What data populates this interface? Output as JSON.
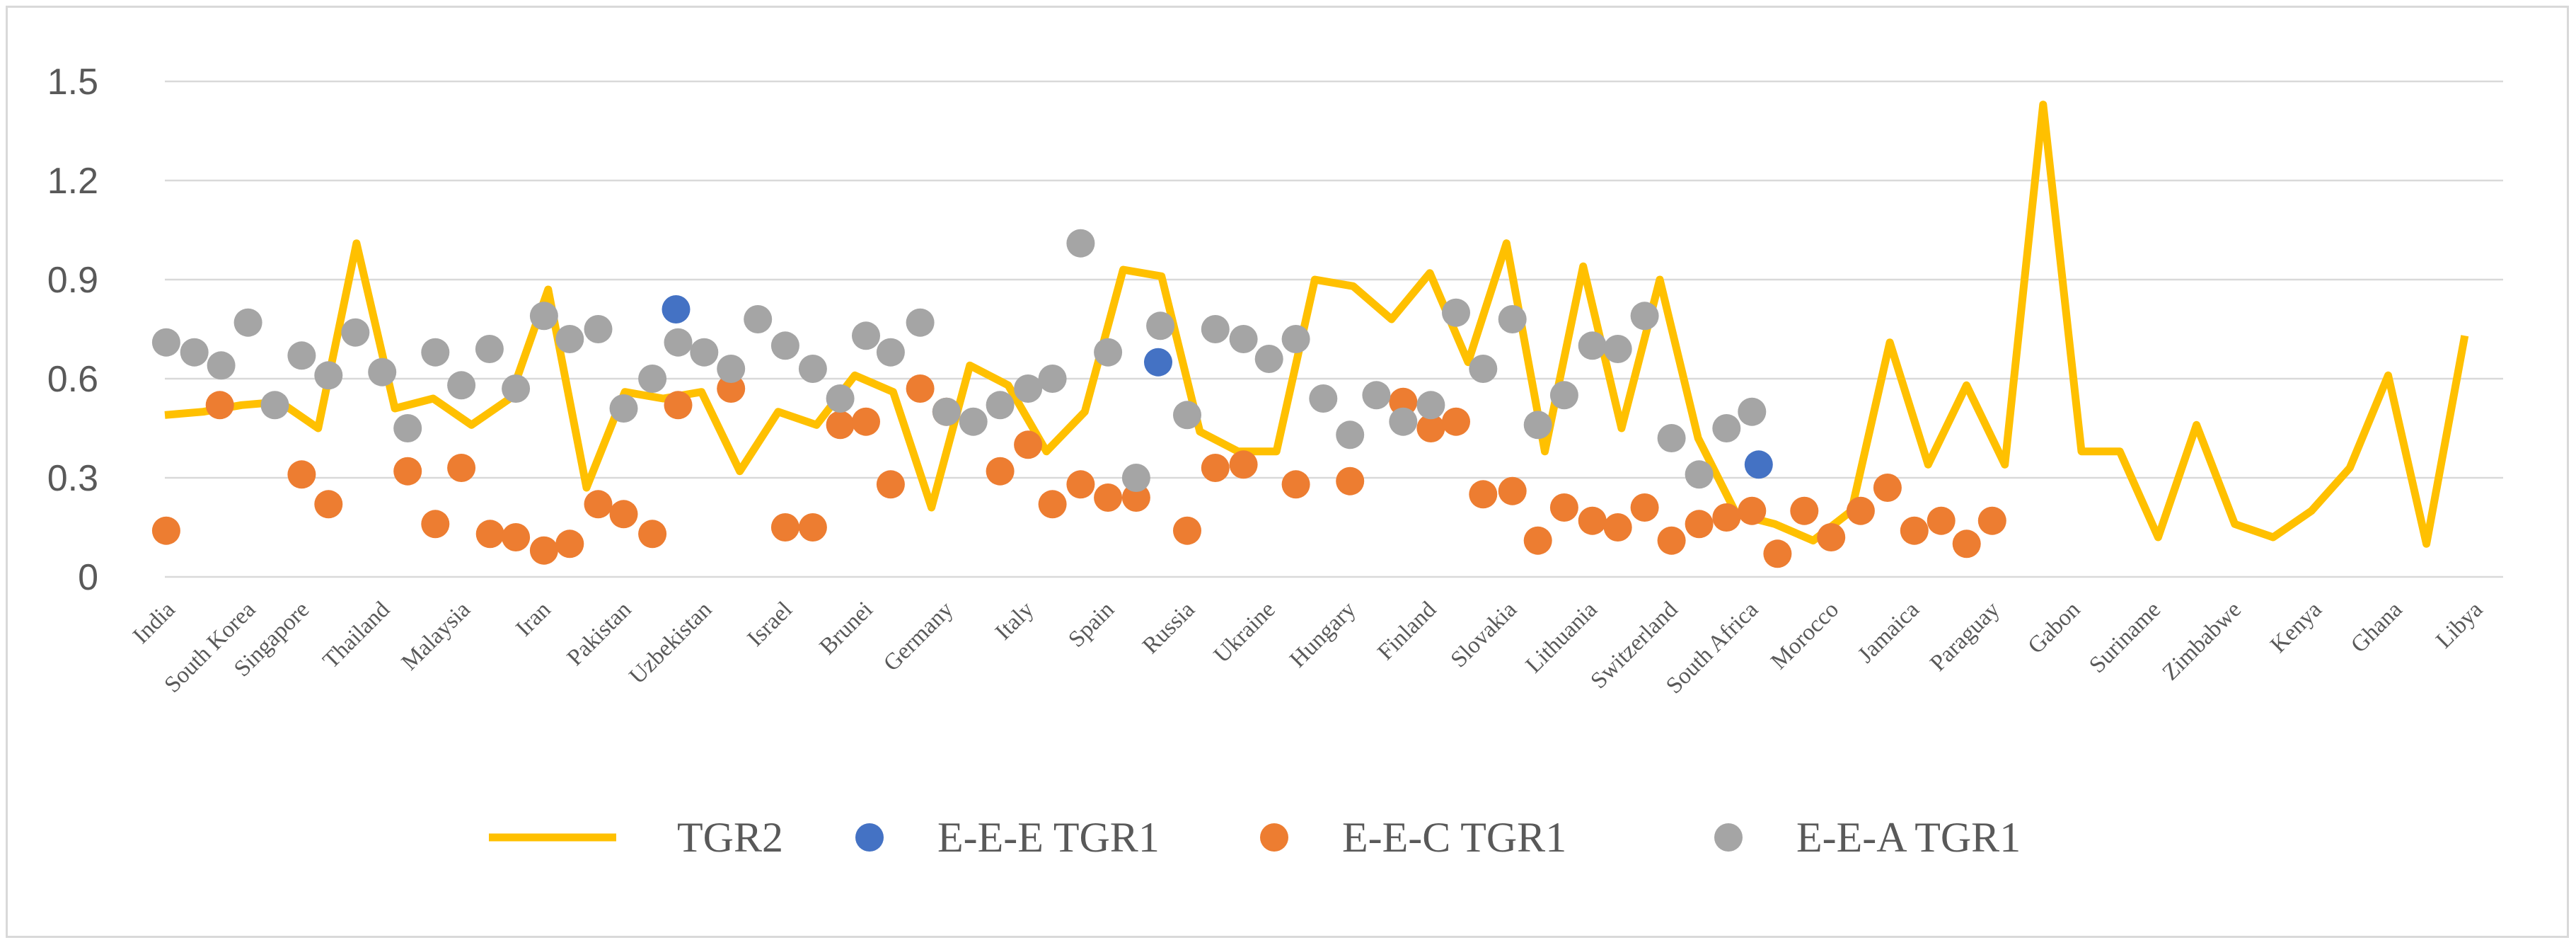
{
  "chart_data": {
    "type": "line",
    "title": "",
    "xlabel": "",
    "ylabel": "",
    "ylim": [
      0,
      1.5
    ],
    "yticks": [
      0,
      0.3,
      0.6,
      0.9,
      1.2,
      1.5
    ],
    "ytick_labels": [
      "0",
      "0.3",
      "0.6",
      "0.9",
      "1.2",
      "1.5"
    ],
    "grid": true,
    "legend_position": "bottom",
    "n_points": 62,
    "tick_labels": [
      {
        "i": 0,
        "label": "India"
      },
      {
        "i": 3,
        "label": "South Korea"
      },
      {
        "i": 5,
        "label": "Singapore"
      },
      {
        "i": 8,
        "label": "Thailand"
      },
      {
        "i": 11,
        "label": "Malaysia"
      },
      {
        "i": 14,
        "label": "Iran"
      },
      {
        "i": 17,
        "label": "Pakistan"
      },
      {
        "i": 20,
        "label": "Uzbekistan"
      },
      {
        "i": 23,
        "label": "Israel"
      },
      {
        "i": 26,
        "label": "Brunei"
      },
      {
        "i": 29,
        "label": "Germany"
      },
      {
        "i": 32,
        "label": "Italy"
      },
      {
        "i": 35,
        "label": "Spain"
      },
      {
        "i": 38,
        "label": "Russia"
      },
      {
        "i": 41,
        "label": "Ukraine"
      },
      {
        "i": 44,
        "label": "Hungary"
      },
      {
        "i": 47,
        "label": "Finland"
      },
      {
        "i": 50,
        "label": "Slovakia"
      },
      {
        "i": 53,
        "label": "Lithuania"
      },
      {
        "i": 56,
        "label": "Switzerland"
      },
      {
        "i": 59,
        "label": "South Africa"
      },
      {
        "i": 62,
        "label": "Morocco"
      },
      {
        "i": 65,
        "label": "Jamaica"
      },
      {
        "i": 68,
        "label": "Paraguay"
      },
      {
        "i": 71,
        "label": "Gabon"
      },
      {
        "i": 74,
        "label": "Suriname"
      },
      {
        "i": 77,
        "label": "Zimbabwe"
      },
      {
        "i": 80,
        "label": "Kenya"
      },
      {
        "i": 83,
        "label": "Ghana"
      },
      {
        "i": 86,
        "label": "Libya"
      }
    ],
    "series": [
      {
        "name": "TGR2",
        "kind": "line",
        "color": "#FFC000",
        "points": [
          [
            0,
            0.49
          ],
          [
            1,
            0.5
          ],
          [
            2,
            0.52
          ],
          [
            3,
            0.53
          ],
          [
            4,
            0.45
          ],
          [
            5,
            1.01
          ],
          [
            6,
            0.51
          ],
          [
            7,
            0.54
          ],
          [
            8,
            0.46
          ],
          [
            9,
            0.54
          ],
          [
            10,
            0.87
          ],
          [
            11,
            0.27
          ],
          [
            12,
            0.56
          ],
          [
            13,
            0.54
          ],
          [
            14,
            0.56
          ],
          [
            15,
            0.32
          ],
          [
            16,
            0.5
          ],
          [
            17,
            0.46
          ],
          [
            18,
            0.61
          ],
          [
            19,
            0.56
          ],
          [
            20,
            0.21
          ],
          [
            21,
            0.64
          ],
          [
            22,
            0.58
          ],
          [
            23,
            0.38
          ],
          [
            24,
            0.5
          ],
          [
            25,
            0.93
          ],
          [
            26,
            0.91
          ],
          [
            27,
            0.44
          ],
          [
            28,
            0.38
          ],
          [
            29,
            0.38
          ],
          [
            30,
            0.9
          ],
          [
            31,
            0.88
          ],
          [
            32,
            0.78
          ],
          [
            33,
            0.92
          ],
          [
            34,
            0.65
          ],
          [
            35,
            1.01
          ],
          [
            36,
            0.38
          ],
          [
            37,
            0.94
          ],
          [
            38,
            0.45
          ],
          [
            39,
            0.9
          ],
          [
            40,
            0.42
          ],
          [
            41,
            0.19
          ],
          [
            42,
            0.16
          ],
          [
            43,
            0.11
          ],
          [
            44,
            0.2
          ],
          [
            45,
            0.71
          ],
          [
            46,
            0.34
          ],
          [
            47,
            0.58
          ],
          [
            48,
            0.34
          ],
          [
            49,
            1.43
          ],
          [
            50,
            0.38
          ],
          [
            51,
            0.38
          ],
          [
            52,
            0.12
          ],
          [
            53,
            0.46
          ],
          [
            54,
            0.16
          ],
          [
            55,
            0.12
          ],
          [
            56,
            0.2
          ],
          [
            57,
            0.33
          ],
          [
            58,
            0.61
          ],
          [
            59,
            0.1
          ],
          [
            60,
            0.73
          ]
        ]
      },
      {
        "name": "E-E-E TGR1",
        "kind": "scatter",
        "color": "#4472C4",
        "points": [
          [
            19.05,
            0.81
          ],
          [
            37.02,
            0.65
          ],
          [
            59.4,
            0.34
          ]
        ]
      },
      {
        "name": "E-E-C TGR1",
        "kind": "scatter",
        "color": "#ED7D31",
        "points": [
          [
            0.05,
            0.14
          ],
          [
            2.05,
            0.52
          ],
          [
            5.1,
            0.31
          ],
          [
            6.1,
            0.22
          ],
          [
            9.05,
            0.32
          ],
          [
            10.08,
            0.16
          ],
          [
            11.05,
            0.33
          ],
          [
            12.12,
            0.13
          ],
          [
            13.08,
            0.12
          ],
          [
            14.13,
            0.08
          ],
          [
            15.09,
            0.1
          ],
          [
            16.15,
            0.22
          ],
          [
            17.1,
            0.19
          ],
          [
            18.17,
            0.13
          ],
          [
            19.13,
            0.52
          ],
          [
            21.1,
            0.57
          ],
          [
            23.12,
            0.15
          ],
          [
            24.15,
            0.15
          ],
          [
            25.17,
            0.46
          ],
          [
            26.13,
            0.47
          ],
          [
            27.05,
            0.28
          ],
          [
            28.15,
            0.57
          ],
          [
            29.13,
            0.5
          ],
          [
            31.13,
            0.32
          ],
          [
            32.17,
            0.4
          ],
          [
            33.08,
            0.22
          ],
          [
            34.13,
            0.28
          ],
          [
            35.15,
            0.24
          ],
          [
            36.2,
            0.24
          ],
          [
            38.1,
            0.14
          ],
          [
            39.15,
            0.33
          ],
          [
            40.2,
            0.34
          ],
          [
            42.15,
            0.28
          ],
          [
            44.17,
            0.29
          ],
          [
            46.15,
            0.53
          ],
          [
            47.18,
            0.45
          ],
          [
            48.12,
            0.47
          ],
          [
            49.13,
            0.25
          ],
          [
            50.22,
            0.26
          ],
          [
            51.17,
            0.11
          ],
          [
            52.15,
            0.21
          ],
          [
            53.2,
            0.17
          ],
          [
            54.15,
            0.15
          ],
          [
            55.15,
            0.21
          ],
          [
            56.15,
            0.11
          ],
          [
            57.18,
            0.16
          ],
          [
            58.2,
            0.18
          ],
          [
            59.15,
            0.2
          ],
          [
            60.1,
            0.07
          ],
          [
            61.1,
            0.2
          ],
          [
            62.1,
            0.12
          ],
          [
            63.2,
            0.2
          ],
          [
            64.2,
            0.27
          ],
          [
            65.2,
            0.14
          ],
          [
            66.2,
            0.17
          ],
          [
            67.15,
            0.1
          ],
          [
            68.1,
            0.17
          ]
        ]
      },
      {
        "name": "E-E-A TGR1",
        "kind": "scatter",
        "color": "#A5A5A5",
        "points": [
          [
            0.05,
            0.71
          ],
          [
            1.1,
            0.68
          ],
          [
            2.1,
            0.64
          ],
          [
            3.1,
            0.77
          ],
          [
            4.1,
            0.52
          ],
          [
            5.1,
            0.67
          ],
          [
            6.1,
            0.61
          ],
          [
            7.1,
            0.74
          ],
          [
            8.1,
            0.62
          ],
          [
            9.05,
            0.45
          ],
          [
            10.08,
            0.68
          ],
          [
            11.05,
            0.58
          ],
          [
            12.1,
            0.69
          ],
          [
            13.08,
            0.57
          ],
          [
            14.13,
            0.79
          ],
          [
            15.09,
            0.72
          ],
          [
            16.15,
            0.75
          ],
          [
            17.1,
            0.51
          ],
          [
            18.17,
            0.6
          ],
          [
            19.13,
            0.71
          ],
          [
            20.1,
            0.68
          ],
          [
            21.1,
            0.63
          ],
          [
            22.1,
            0.78
          ],
          [
            23.12,
            0.7
          ],
          [
            24.15,
            0.63
          ],
          [
            25.17,
            0.54
          ],
          [
            26.13,
            0.73
          ],
          [
            27.05,
            0.68
          ],
          [
            28.15,
            0.77
          ],
          [
            29.13,
            0.5
          ],
          [
            30.13,
            0.47
          ],
          [
            31.13,
            0.52
          ],
          [
            32.17,
            0.57
          ],
          [
            33.08,
            0.6
          ],
          [
            34.13,
            1.01
          ],
          [
            35.15,
            0.68
          ],
          [
            36.2,
            0.3
          ],
          [
            37.1,
            0.76
          ],
          [
            38.1,
            0.49
          ],
          [
            39.15,
            0.75
          ],
          [
            40.2,
            0.72
          ],
          [
            41.15,
            0.66
          ],
          [
            42.15,
            0.72
          ],
          [
            43.17,
            0.54
          ],
          [
            44.17,
            0.43
          ],
          [
            45.15,
            0.55
          ],
          [
            46.15,
            0.47
          ],
          [
            47.18,
            0.52
          ],
          [
            48.12,
            0.8
          ],
          [
            49.13,
            0.63
          ],
          [
            50.22,
            0.78
          ],
          [
            51.17,
            0.46
          ],
          [
            52.15,
            0.55
          ],
          [
            53.2,
            0.7
          ],
          [
            54.15,
            0.69
          ],
          [
            55.15,
            0.79
          ],
          [
            56.15,
            0.42
          ],
          [
            57.18,
            0.31
          ],
          [
            58.2,
            0.45
          ],
          [
            59.15,
            0.5
          ]
        ]
      }
    ]
  }
}
